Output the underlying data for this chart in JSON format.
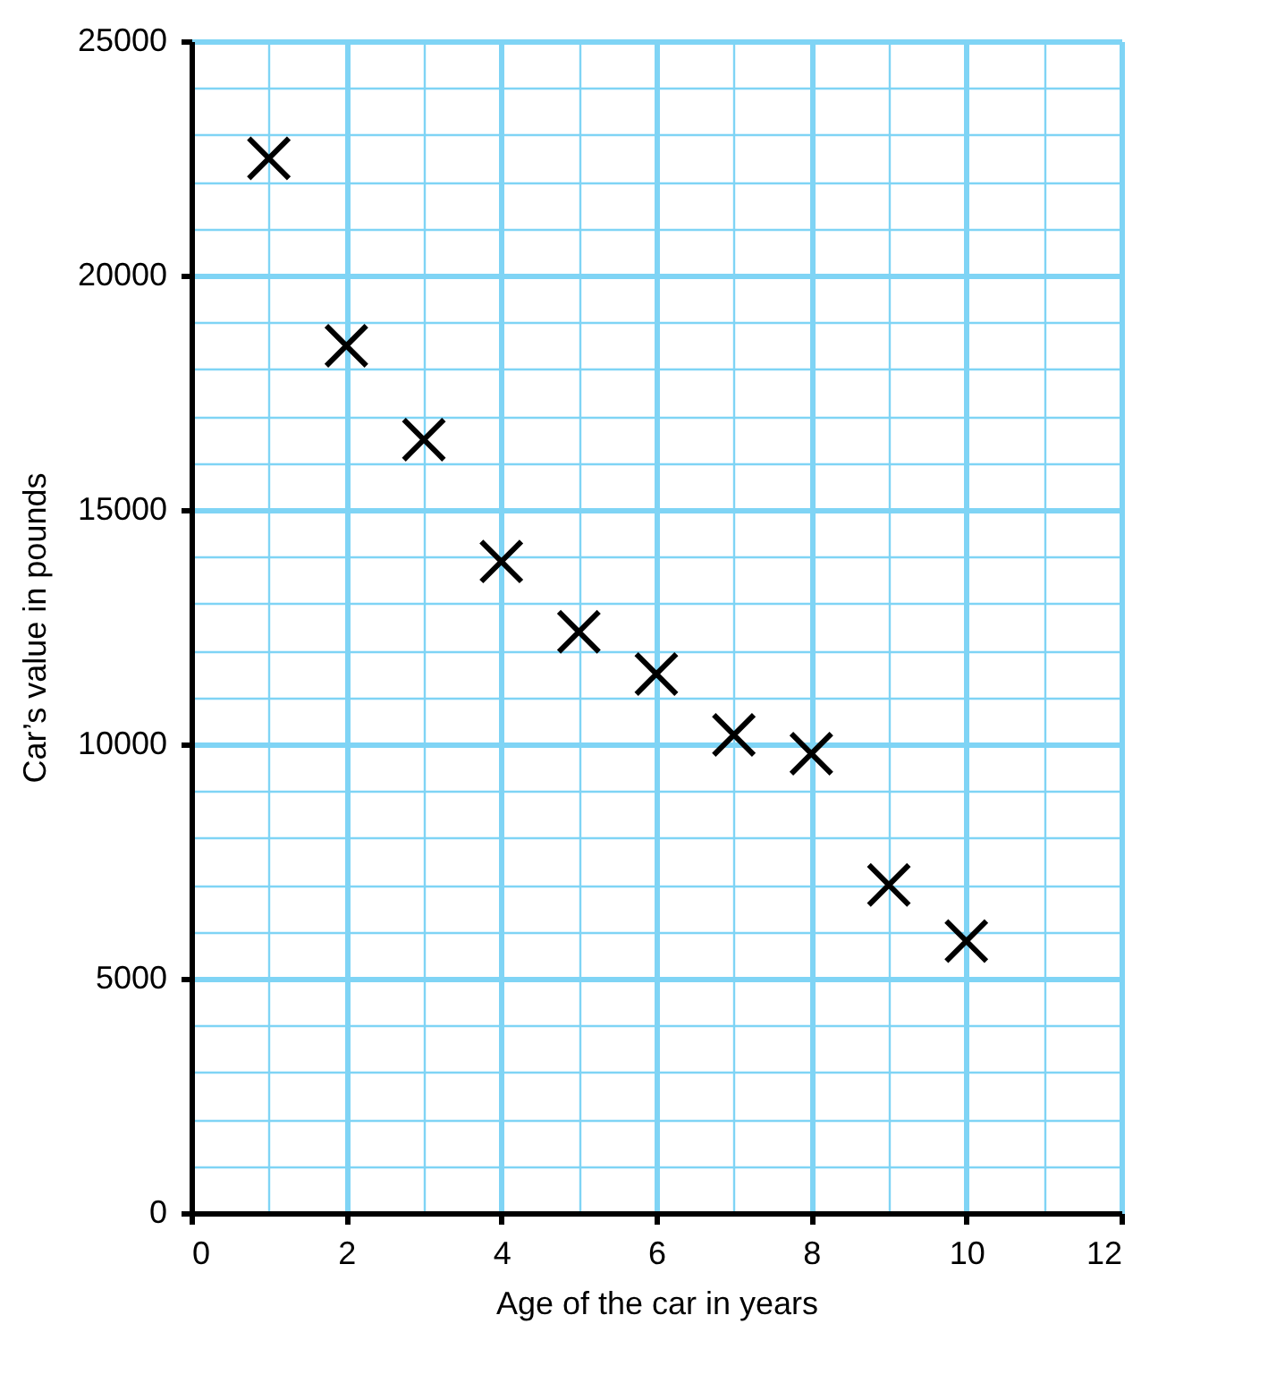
{
  "chart_data": {
    "type": "scatter",
    "xlabel": "Age of the car in years",
    "ylabel": "Car’s value in pounds",
    "x": [
      1,
      2,
      3,
      4,
      5,
      6,
      7,
      8,
      9,
      10
    ],
    "series": [
      {
        "color": "#000000",
        "values": [
          22500,
          18500,
          16500,
          13900,
          12400,
          11500,
          10200,
          9800,
          7000,
          5800
        ]
      }
    ],
    "xlim": [
      0,
      12
    ],
    "xticks": [
      0,
      {
        "value": 1,
        "label": null
      },
      2,
      {
        "value": 3,
        "label": null
      },
      4,
      {
        "value": 5,
        "label": null
      },
      6,
      {
        "value": 7,
        "label": null
      },
      8,
      {
        "value": 9,
        "label": null
      },
      10,
      {
        "value": 11,
        "label": null
      },
      12
    ],
    "ylim": [
      0,
      25000
    ],
    "yticks": [
      0,
      {
        "value": 1000,
        "label": null
      },
      {
        "value": 2000,
        "label": null
      },
      {
        "value": 3000,
        "label": null
      },
      {
        "value": 4000,
        "label": null
      },
      5000,
      {
        "value": 6000,
        "label": null
      },
      {
        "value": 7000,
        "label": null
      },
      {
        "value": 8000,
        "label": null
      },
      {
        "value": 9000,
        "label": null
      },
      10000,
      {
        "value": 11000,
        "label": null
      },
      {
        "value": 12000,
        "label": null
      },
      {
        "value": 13000,
        "label": null
      },
      {
        "value": 14000,
        "label": null
      },
      15000,
      {
        "value": 16000,
        "label": null
      },
      {
        "value": 17000,
        "label": null
      },
      {
        "value": 18000,
        "label": null
      },
      {
        "value": 19000,
        "label": null
      },
      20000,
      {
        "value": 21000,
        "label": null
      },
      {
        "value": 22000,
        "label": null
      },
      {
        "value": 23000,
        "label": null
      },
      {
        "value": 24000,
        "label": null
      },
      25000
    ],
    "grid": true,
    "marker": "cross"
  }
}
